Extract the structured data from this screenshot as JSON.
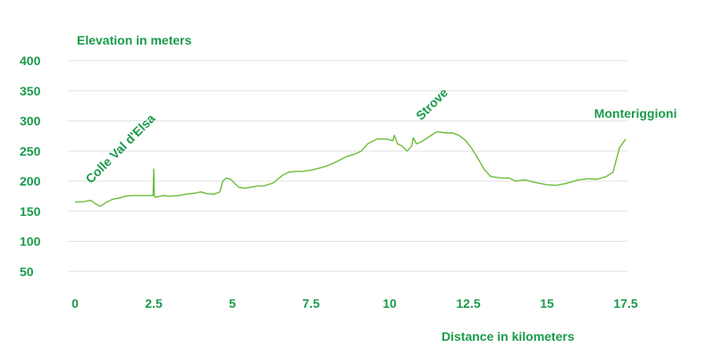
{
  "chart_data": {
    "type": "line",
    "ylabel": "Elevation in meters",
    "xlabel": "Distance in kilometers",
    "xlim": [
      0,
      17.5
    ],
    "ylim": [
      0,
      400
    ],
    "x_ticks": [
      "0",
      "2.5",
      "5",
      "7.5",
      "10",
      "12.5",
      "15",
      "17.5"
    ],
    "y_ticks": [
      "400",
      "350",
      "300",
      "250",
      "200",
      "150",
      "100",
      "50"
    ],
    "grid": true,
    "colors": {
      "line": "#6cbd3a",
      "text": "#1a9a4a",
      "grid": "#e3e3e3"
    },
    "annotations": [
      {
        "text": "Colle Val d'Elsa",
        "x": 0.5,
        "y": 195,
        "rotate": -45
      },
      {
        "text": "Strove",
        "x": 11.0,
        "y": 300,
        "rotate": -45
      },
      {
        "text": "Monteriggioni",
        "x": 16.5,
        "y": 305,
        "rotate": 0
      }
    ],
    "series": [
      {
        "name": "",
        "points": [
          [
            0.0,
            165
          ],
          [
            0.3,
            166
          ],
          [
            0.5,
            168
          ],
          [
            0.65,
            162
          ],
          [
            0.8,
            158
          ],
          [
            1.0,
            165
          ],
          [
            1.2,
            170
          ],
          [
            1.4,
            172
          ],
          [
            1.6,
            175
          ],
          [
            1.8,
            176
          ],
          [
            2.0,
            176
          ],
          [
            2.3,
            176
          ],
          [
            2.48,
            176
          ],
          [
            2.5,
            220
          ],
          [
            2.52,
            176
          ],
          [
            2.55,
            173
          ],
          [
            2.8,
            176
          ],
          [
            3.0,
            175
          ],
          [
            3.3,
            176
          ],
          [
            3.5,
            178
          ],
          [
            3.8,
            180
          ],
          [
            4.0,
            182
          ],
          [
            4.2,
            179
          ],
          [
            4.4,
            178
          ],
          [
            4.6,
            182
          ],
          [
            4.7,
            200
          ],
          [
            4.8,
            205
          ],
          [
            4.95,
            203
          ],
          [
            5.1,
            195
          ],
          [
            5.2,
            190
          ],
          [
            5.4,
            188
          ],
          [
            5.6,
            190
          ],
          [
            5.8,
            192
          ],
          [
            6.0,
            192
          ],
          [
            6.3,
            197
          ],
          [
            6.6,
            210
          ],
          [
            6.8,
            215
          ],
          [
            7.0,
            216
          ],
          [
            7.2,
            216
          ],
          [
            7.5,
            218
          ],
          [
            7.8,
            222
          ],
          [
            8.0,
            225
          ],
          [
            8.3,
            232
          ],
          [
            8.6,
            240
          ],
          [
            8.9,
            245
          ],
          [
            9.1,
            250
          ],
          [
            9.3,
            262
          ],
          [
            9.6,
            270
          ],
          [
            9.9,
            270
          ],
          [
            10.1,
            267
          ],
          [
            10.15,
            276
          ],
          [
            10.25,
            262
          ],
          [
            10.4,
            258
          ],
          [
            10.55,
            250
          ],
          [
            10.7,
            258
          ],
          [
            10.75,
            272
          ],
          [
            10.85,
            262
          ],
          [
            11.0,
            265
          ],
          [
            11.2,
            272
          ],
          [
            11.5,
            282
          ],
          [
            11.8,
            280
          ],
          [
            12.0,
            280
          ],
          [
            12.2,
            276
          ],
          [
            12.4,
            268
          ],
          [
            12.6,
            255
          ],
          [
            12.8,
            238
          ],
          [
            13.0,
            220
          ],
          [
            13.2,
            208
          ],
          [
            13.4,
            206
          ],
          [
            13.6,
            205
          ],
          [
            13.8,
            205
          ],
          [
            14.0,
            200
          ],
          [
            14.3,
            202
          ],
          [
            14.6,
            198
          ],
          [
            15.0,
            194
          ],
          [
            15.3,
            193
          ],
          [
            15.6,
            196
          ],
          [
            16.0,
            202
          ],
          [
            16.3,
            204
          ],
          [
            16.6,
            203
          ],
          [
            16.9,
            208
          ],
          [
            17.1,
            215
          ],
          [
            17.3,
            255
          ],
          [
            17.5,
            270
          ]
        ]
      }
    ]
  }
}
